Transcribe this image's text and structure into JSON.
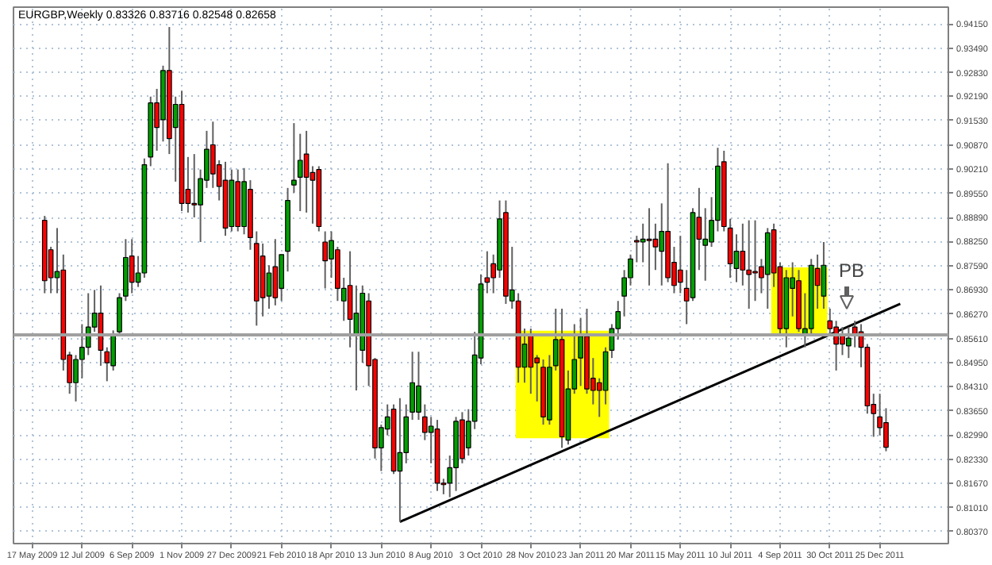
{
  "chart_data": {
    "type": "candlestick",
    "title": "EURGBP,Weekly 0.83326 0.83716 0.82548 0.82658",
    "x": [
      "2009-05-31",
      "2009-06-07",
      "2009-06-14",
      "2009-06-21",
      "2009-06-28",
      "2009-07-05",
      "2009-07-12",
      "2009-07-19",
      "2009-07-26",
      "2009-08-02",
      "2009-08-09",
      "2009-08-16",
      "2009-08-23",
      "2009-08-30",
      "2009-09-06",
      "2009-09-13",
      "2009-09-20",
      "2009-09-27",
      "2009-10-04",
      "2009-10-11",
      "2009-10-18",
      "2009-10-25",
      "2009-11-01",
      "2009-11-08",
      "2009-11-15",
      "2009-11-22",
      "2009-11-29",
      "2009-12-06",
      "2009-12-13",
      "2009-12-20",
      "2009-12-27",
      "2010-01-03",
      "2010-01-10",
      "2010-01-17",
      "2010-01-24",
      "2010-01-31",
      "2010-02-07",
      "2010-02-14",
      "2010-02-21",
      "2010-02-28",
      "2010-03-07",
      "2010-03-14",
      "2010-03-21",
      "2010-03-28",
      "2010-04-04",
      "2010-04-11",
      "2010-04-18",
      "2010-04-25",
      "2010-05-02",
      "2010-05-09",
      "2010-05-16",
      "2010-05-23",
      "2010-05-30",
      "2010-06-06",
      "2010-06-13",
      "2010-06-20",
      "2010-06-27",
      "2010-07-04",
      "2010-07-11",
      "2010-07-18",
      "2010-07-25",
      "2010-08-01",
      "2010-08-08",
      "2010-08-15",
      "2010-08-22",
      "2010-08-29",
      "2010-09-05",
      "2010-09-12",
      "2010-09-19",
      "2010-09-26",
      "2010-10-03",
      "2010-10-10",
      "2010-10-17",
      "2010-10-24",
      "2010-10-31",
      "2010-11-07",
      "2010-11-14",
      "2010-11-21",
      "2010-11-28",
      "2010-12-05",
      "2010-12-12",
      "2010-12-19",
      "2010-12-26",
      "2011-01-02",
      "2011-01-09",
      "2011-01-16",
      "2011-01-23",
      "2011-01-30",
      "2011-02-06",
      "2011-02-13",
      "2011-02-20",
      "2011-02-27",
      "2011-03-06",
      "2011-03-13",
      "2011-03-20",
      "2011-03-27",
      "2011-04-03",
      "2011-04-10",
      "2011-04-17",
      "2011-04-24",
      "2011-05-01",
      "2011-05-08",
      "2011-05-15",
      "2011-05-22",
      "2011-05-29",
      "2011-06-05",
      "2011-06-12",
      "2011-06-19",
      "2011-06-26",
      "2011-07-03",
      "2011-07-10",
      "2011-07-17",
      "2011-07-24",
      "2011-07-31",
      "2011-08-07",
      "2011-08-14",
      "2011-08-21",
      "2011-08-28",
      "2011-09-04",
      "2011-09-11",
      "2011-09-18",
      "2011-09-25",
      "2011-10-02",
      "2011-10-09",
      "2011-10-16",
      "2011-10-23",
      "2011-10-30",
      "2011-11-06",
      "2011-11-13",
      "2011-11-20",
      "2011-11-27",
      "2011-12-04",
      "2011-12-11",
      "2011-12-18",
      "2011-12-25",
      "2012-01-01"
    ],
    "ohlc": [
      [
        0.8882,
        0.8894,
        0.8684,
        0.8718
      ],
      [
        0.8802,
        0.881,
        0.8684,
        0.8726
      ],
      [
        0.8726,
        0.8861,
        0.8684,
        0.8743
      ],
      [
        0.8747,
        0.8789,
        0.8474,
        0.8504
      ],
      [
        0.8516,
        0.8525,
        0.8411,
        0.8441
      ],
      [
        0.8441,
        0.8516,
        0.839,
        0.8504
      ],
      [
        0.8504,
        0.86,
        0.8453,
        0.8537
      ],
      [
        0.8537,
        0.8684,
        0.8516,
        0.8592
      ],
      [
        0.8592,
        0.8693,
        0.8579,
        0.863
      ],
      [
        0.863,
        0.8705,
        0.8487,
        0.8529
      ],
      [
        0.8525,
        0.8537,
        0.8445,
        0.8495
      ],
      [
        0.8487,
        0.8583,
        0.8474,
        0.8571
      ],
      [
        0.8579,
        0.8684,
        0.8567,
        0.8672
      ],
      [
        0.8676,
        0.8831,
        0.8663,
        0.8781
      ],
      [
        0.8785,
        0.8831,
        0.8684,
        0.8714
      ],
      [
        0.8714,
        0.8785,
        0.8701,
        0.8739
      ],
      [
        0.8739,
        0.905,
        0.8726,
        0.9033
      ],
      [
        0.9054,
        0.9218,
        0.9029,
        0.9201
      ],
      [
        0.9201,
        0.9239,
        0.9071,
        0.9134
      ],
      [
        0.9155,
        0.9302,
        0.9096,
        0.9289
      ],
      [
        0.9289,
        0.9407,
        0.9062,
        0.9104
      ],
      [
        0.9134,
        0.9218,
        0.8987,
        0.9197
      ],
      [
        0.9197,
        0.9234,
        0.8907,
        0.8928
      ],
      [
        0.8966,
        0.9054,
        0.8903,
        0.8928
      ],
      [
        0.8928,
        0.9062,
        0.889,
        0.8924
      ],
      [
        0.8924,
        0.902,
        0.8823,
        0.8995
      ],
      [
        0.8991,
        0.9125,
        0.897,
        0.9075
      ],
      [
        0.9087,
        0.915,
        0.897,
        0.9008
      ],
      [
        0.9033,
        0.9045,
        0.8936,
        0.8974
      ],
      [
        0.8991,
        0.9041,
        0.884,
        0.8861
      ],
      [
        0.8865,
        0.902,
        0.8852,
        0.8991
      ],
      [
        0.8987,
        0.902,
        0.8852,
        0.8865
      ],
      [
        0.8865,
        0.9024,
        0.8844,
        0.8987
      ],
      [
        0.8966,
        0.8991,
        0.8802,
        0.8835
      ],
      [
        0.8819,
        0.8852,
        0.8596,
        0.8663
      ],
      [
        0.8785,
        0.8819,
        0.8621,
        0.8672
      ],
      [
        0.8676,
        0.876,
        0.8642,
        0.8739
      ],
      [
        0.8756,
        0.8831,
        0.8651,
        0.8672
      ],
      [
        0.8697,
        0.8789,
        0.8663,
        0.8789
      ],
      [
        0.8798,
        0.897,
        0.8743,
        0.8936
      ],
      [
        0.8978,
        0.9146,
        0.8957,
        0.8991
      ],
      [
        0.8999,
        0.9117,
        0.8907,
        0.9045
      ],
      [
        0.9062,
        0.9125,
        0.8903,
        0.8999
      ],
      [
        0.9012,
        0.9029,
        0.8873,
        0.8991
      ],
      [
        0.902,
        0.9029,
        0.8852,
        0.8865
      ],
      [
        0.8823,
        0.8852,
        0.8697,
        0.8772
      ],
      [
        0.8777,
        0.8852,
        0.8726,
        0.8827
      ],
      [
        0.8802,
        0.881,
        0.8663,
        0.8697
      ],
      [
        0.8663,
        0.8726,
        0.8609,
        0.8697
      ],
      [
        0.8705,
        0.8798,
        0.8537,
        0.8613
      ],
      [
        0.8571,
        0.8705,
        0.842,
        0.863
      ],
      [
        0.8529,
        0.8705,
        0.8495,
        0.8684
      ],
      [
        0.8663,
        0.8684,
        0.8432,
        0.8487
      ],
      [
        0.8504,
        0.8508,
        0.8235,
        0.8264
      ],
      [
        0.8264,
        0.8327,
        0.8201,
        0.8319
      ],
      [
        0.8315,
        0.8382,
        0.8298,
        0.8348
      ],
      [
        0.8369,
        0.8382,
        0.8193,
        0.8201
      ],
      [
        0.8201,
        0.8399,
        0.8063,
        0.8251
      ],
      [
        0.8251,
        0.8382,
        0.8222,
        0.8348
      ],
      [
        0.8361,
        0.8525,
        0.834,
        0.8441
      ],
      [
        0.8361,
        0.8525,
        0.834,
        0.8432
      ],
      [
        0.8348,
        0.8382,
        0.8285,
        0.8306
      ],
      [
        0.8306,
        0.8348,
        0.8222,
        0.8323
      ],
      [
        0.8315,
        0.834,
        0.8147,
        0.8168
      ],
      [
        0.8168,
        0.818,
        0.8138,
        0.8164
      ],
      [
        0.8168,
        0.8243,
        0.813,
        0.821
      ],
      [
        0.821,
        0.8348,
        0.8147,
        0.8336
      ],
      [
        0.834,
        0.8361,
        0.8222,
        0.8235
      ],
      [
        0.8264,
        0.8369,
        0.8243,
        0.8336
      ],
      [
        0.8336,
        0.8579,
        0.8315,
        0.8516
      ],
      [
        0.8508,
        0.8735,
        0.8491,
        0.8709
      ],
      [
        0.8726,
        0.8798,
        0.8684,
        0.8714
      ],
      [
        0.8764,
        0.8789,
        0.8684,
        0.8726
      ],
      [
        0.8747,
        0.8936,
        0.8726,
        0.8886
      ],
      [
        0.8903,
        0.8936,
        0.8655,
        0.8676
      ],
      [
        0.8663,
        0.881,
        0.8642,
        0.8693
      ],
      [
        0.8663,
        0.8684,
        0.8441,
        0.8483
      ],
      [
        0.8483,
        0.8588,
        0.8441,
        0.8546
      ],
      [
        0.8571,
        0.8588,
        0.8411,
        0.8483
      ],
      [
        0.8508,
        0.8516,
        0.839,
        0.8495
      ],
      [
        0.8483,
        0.8504,
        0.8327,
        0.8348
      ],
      [
        0.834,
        0.8516,
        0.8327,
        0.8483
      ],
      [
        0.8487,
        0.8642,
        0.8474,
        0.8558
      ],
      [
        0.8558,
        0.8642,
        0.8264,
        0.8294
      ],
      [
        0.8285,
        0.8474,
        0.8273,
        0.8424
      ],
      [
        0.8424,
        0.86,
        0.8411,
        0.8504
      ],
      [
        0.8508,
        0.8617,
        0.8432,
        0.8567
      ],
      [
        0.8567,
        0.8642,
        0.8411,
        0.8424
      ],
      [
        0.8453,
        0.8508,
        0.8382,
        0.842
      ],
      [
        0.8441,
        0.8453,
        0.8348,
        0.842
      ],
      [
        0.842,
        0.8537,
        0.8382,
        0.8525
      ],
      [
        0.8529,
        0.86,
        0.8508,
        0.8588
      ],
      [
        0.8588,
        0.8663,
        0.8558,
        0.8634
      ],
      [
        0.8676,
        0.8747,
        0.8621,
        0.8726
      ],
      [
        0.8726,
        0.8789,
        0.8705,
        0.8777
      ],
      [
        0.8827,
        0.884,
        0.8768,
        0.8823
      ],
      [
        0.8823,
        0.8873,
        0.8768,
        0.8831
      ],
      [
        0.8831,
        0.8915,
        0.8705,
        0.8827
      ],
      [
        0.8831,
        0.8873,
        0.8747,
        0.881
      ],
      [
        0.8798,
        0.8928,
        0.8705,
        0.8852
      ],
      [
        0.8852,
        0.9037,
        0.8714,
        0.8726
      ],
      [
        0.8768,
        0.881,
        0.8684,
        0.8705
      ],
      [
        0.8747,
        0.884,
        0.8684,
        0.8714
      ],
      [
        0.8697,
        0.8747,
        0.86,
        0.8663
      ],
      [
        0.8672,
        0.8915,
        0.8663,
        0.8903
      ],
      [
        0.889,
        0.897,
        0.8747,
        0.8831
      ],
      [
        0.8814,
        0.8915,
        0.8718,
        0.8831
      ],
      [
        0.8823,
        0.8945,
        0.881,
        0.8882
      ],
      [
        0.8882,
        0.9079,
        0.8852,
        0.9029
      ],
      [
        0.9041,
        0.9071,
        0.8852,
        0.8865
      ],
      [
        0.8861,
        0.8886,
        0.8726,
        0.8764
      ],
      [
        0.8751,
        0.8844,
        0.8714,
        0.8798
      ],
      [
        0.8798,
        0.8873,
        0.8705,
        0.8747
      ],
      [
        0.8747,
        0.8882,
        0.8642,
        0.8735
      ],
      [
        0.8743,
        0.8882,
        0.8663,
        0.8739
      ],
      [
        0.8756,
        0.8777,
        0.8684,
        0.8726
      ],
      [
        0.8735,
        0.8861,
        0.8642,
        0.8848
      ],
      [
        0.8856,
        0.8873,
        0.8701,
        0.8739
      ],
      [
        0.8756,
        0.8768,
        0.8567,
        0.8588
      ],
      [
        0.8588,
        0.8747,
        0.8537,
        0.8726
      ],
      [
        0.8697,
        0.8768,
        0.8621,
        0.8726
      ],
      [
        0.8718,
        0.8747,
        0.8579,
        0.8588
      ],
      [
        0.8571,
        0.8684,
        0.8537,
        0.8588
      ],
      [
        0.8588,
        0.8777,
        0.8567,
        0.876
      ],
      [
        0.8751,
        0.8789,
        0.8642,
        0.8705
      ],
      [
        0.8676,
        0.8823,
        0.8642,
        0.876
      ],
      [
        0.8609,
        0.8642,
        0.8567,
        0.8588
      ],
      [
        0.8592,
        0.8609,
        0.8474,
        0.8546
      ],
      [
        0.8571,
        0.8592,
        0.8516,
        0.8546
      ],
      [
        0.8541,
        0.8592,
        0.8508,
        0.8562
      ],
      [
        0.8592,
        0.8609,
        0.8537,
        0.8571
      ],
      [
        0.8579,
        0.86,
        0.8483,
        0.8537
      ],
      [
        0.8537,
        0.8546,
        0.8357,
        0.8378
      ],
      [
        0.8382,
        0.8411,
        0.8294,
        0.8357
      ],
      [
        0.8348,
        0.8411,
        0.8298,
        0.8319
      ],
      [
        0.83326,
        0.83716,
        0.82548,
        0.82658
      ]
    ],
    "colors": [
      "#ff0000",
      "#ff0000",
      "#00a000",
      "#ff0000",
      "#ff0000",
      "#00a000",
      "#00a000",
      "#00a000",
      "#00a000",
      "#ff0000",
      "#ff0000",
      "#00a000",
      "#00a000",
      "#00a000",
      "#ff0000",
      "#00a000",
      "#00a000",
      "#00a000",
      "#ff0000",
      "#00a000",
      "#ff0000",
      "#00a000",
      "#ff0000",
      "#ff0000",
      "#ff0000",
      "#00a000",
      "#00a000",
      "#ff0000",
      "#ff0000",
      "#ff0000",
      "#00a000",
      "#ff0000",
      "#00a000",
      "#ff0000",
      "#ff0000",
      "#ff0000",
      "#00a000",
      "#ff0000",
      "#00a000",
      "#00a000",
      "#00a000",
      "#00a000",
      "#ff0000",
      "#ff0000",
      "#ff0000",
      "#ff0000",
      "#00a000",
      "#ff0000",
      "#00a000",
      "#ff0000",
      "#00a000",
      "#00a000",
      "#ff0000",
      "#ff0000",
      "#00a000",
      "#00a000",
      "#ff0000",
      "#00a000",
      "#00a000",
      "#00a000",
      "#00a000",
      "#ff0000",
      "#00a000",
      "#ff0000",
      "#ff0000",
      "#00a000",
      "#00a000",
      "#ff0000",
      "#00a000",
      "#00a000",
      "#00a000",
      "#ff0000",
      "#ff0000",
      "#00a000",
      "#ff0000",
      "#00a000",
      "#ff0000",
      "#00a000",
      "#ff0000",
      "#ff0000",
      "#ff0000",
      "#00a000",
      "#00a000",
      "#ff0000",
      "#00a000",
      "#00a000",
      "#00a000",
      "#ff0000",
      "#ff0000",
      "#ff0000",
      "#00a000",
      "#00a000",
      "#00a000",
      "#00a000",
      "#00a000",
      "#ff0000",
      "#00a000",
      "#ff0000",
      "#ff0000",
      "#00a000",
      "#ff0000",
      "#ff0000",
      "#ff0000",
      "#ff0000",
      "#00a000",
      "#ff0000",
      "#00a000",
      "#00a000",
      "#00a000",
      "#ff0000",
      "#ff0000",
      "#00a000",
      "#ff0000",
      "#ff0000",
      "#ff0000",
      "#ff0000",
      "#00a000",
      "#ff0000",
      "#ff0000",
      "#00a000",
      "#00a000",
      "#ff0000",
      "#00a000",
      "#00a000",
      "#ff0000",
      "#00a000",
      "#ff0000",
      "#ff0000",
      "#ff0000",
      "#00a000",
      "#ff0000",
      "#ff0000",
      "#ff0000",
      "#ff0000",
      "#ff0000",
      "#ff0000"
    ],
    "series": [
      {
        "type": "line",
        "color": "#ffff00",
        "x": [
          "2010-11-11",
          "2011-02-24"
        ],
        "values": [
          0.8579,
          0.8579
        ],
        "lower": [
          0.829,
          0.829
        ],
        "upper": [
          0.8579,
          0.8579
        ]
      },
      {
        "type": "line",
        "color": "#ffff00",
        "x": [
          "2011-08-25",
          "2011-10-27"
        ],
        "values": [
          0.8751,
          0.8751
        ],
        "lower": [
          0.8575,
          0.8575
        ],
        "upper": [
          0.8751,
          0.8751
        ]
      },
      {
        "type": "line",
        "color": "#000000",
        "x": [
          "2010-07-04",
          "2012-01-17"
        ],
        "values": [
          0.8063,
          0.8655
        ]
      }
    ],
    "ref_lines": [
      {
        "axis": "y",
        "value": 0.8571,
        "color": "#a0a0a0"
      }
    ],
    "annotations": [
      "PB"
    ],
    "xlim": [
      "2009-04-26",
      "2012-03-11"
    ],
    "ylim": [
      0.8004,
      0.9461
    ],
    "xticks": [
      {
        "value": "2009-05-17",
        "label": "17 May 2009"
      },
      {
        "value": "2009-07-12",
        "label": "12 Jul 2009"
      },
      {
        "value": "2009-09-06",
        "label": "6 Sep 2009"
      },
      {
        "value": "2009-11-01",
        "label": "1 Nov 2009"
      },
      {
        "value": "2009-12-27",
        "label": "27 Dec 2009"
      },
      {
        "value": "2010-02-21",
        "label": "21 Feb 2010"
      },
      {
        "value": "2010-04-18",
        "label": "18 Apr 2010"
      },
      {
        "value": "2010-06-13",
        "label": "13 Jun 2010"
      },
      {
        "value": "2010-08-08",
        "label": "8 Aug 2010"
      },
      {
        "value": "2010-10-03",
        "label": "3 Oct 2010"
      },
      {
        "value": "2010-11-28",
        "label": "28 Nov 2010"
      },
      {
        "value": "2011-01-23",
        "label": "23 Jan 2011"
      },
      {
        "value": "2011-03-20",
        "label": "20 Mar 2011"
      },
      {
        "value": "2011-05-15",
        "label": "15 May 2011"
      },
      {
        "value": "2011-07-10",
        "label": "10 Jul 2011"
      },
      {
        "value": "2011-09-04",
        "label": "4 Sep 2011"
      },
      {
        "value": "2011-10-30",
        "label": "30 Oct 2011"
      },
      {
        "value": "2011-12-25",
        "label": "25 Dec 2011"
      }
    ],
    "yticks": [
      {
        "value": 0.9415,
        "label": "0.94150"
      },
      {
        "value": 0.9349,
        "label": "0.93490"
      },
      {
        "value": 0.9283,
        "label": "0.92830"
      },
      {
        "value": 0.9219,
        "label": "0.92190"
      },
      {
        "value": 0.9153,
        "label": "0.91530"
      },
      {
        "value": 0.9087,
        "label": "0.90870"
      },
      {
        "value": 0.9021,
        "label": "0.90210"
      },
      {
        "value": 0.8955,
        "label": "0.89550"
      },
      {
        "value": 0.8889,
        "label": "0.88890"
      },
      {
        "value": 0.8825,
        "label": "0.88250"
      },
      {
        "value": 0.8759,
        "label": "0.87590"
      },
      {
        "value": 0.8693,
        "label": "0.86930"
      },
      {
        "value": 0.8627,
        "label": "0.86270"
      },
      {
        "value": 0.8561,
        "label": "0.85610"
      },
      {
        "value": 0.8495,
        "label": "0.84950"
      },
      {
        "value": 0.8431,
        "label": "0.84310"
      },
      {
        "value": 0.8365,
        "label": "0.83650"
      },
      {
        "value": 0.8299,
        "label": "0.82990"
      },
      {
        "value": 0.8233,
        "label": "0.82330"
      },
      {
        "value": 0.8167,
        "label": "0.81670"
      },
      {
        "value": 0.8101,
        "label": "0.81010"
      },
      {
        "value": 0.8037,
        "label": "0.80370"
      }
    ],
    "grid": true
  }
}
